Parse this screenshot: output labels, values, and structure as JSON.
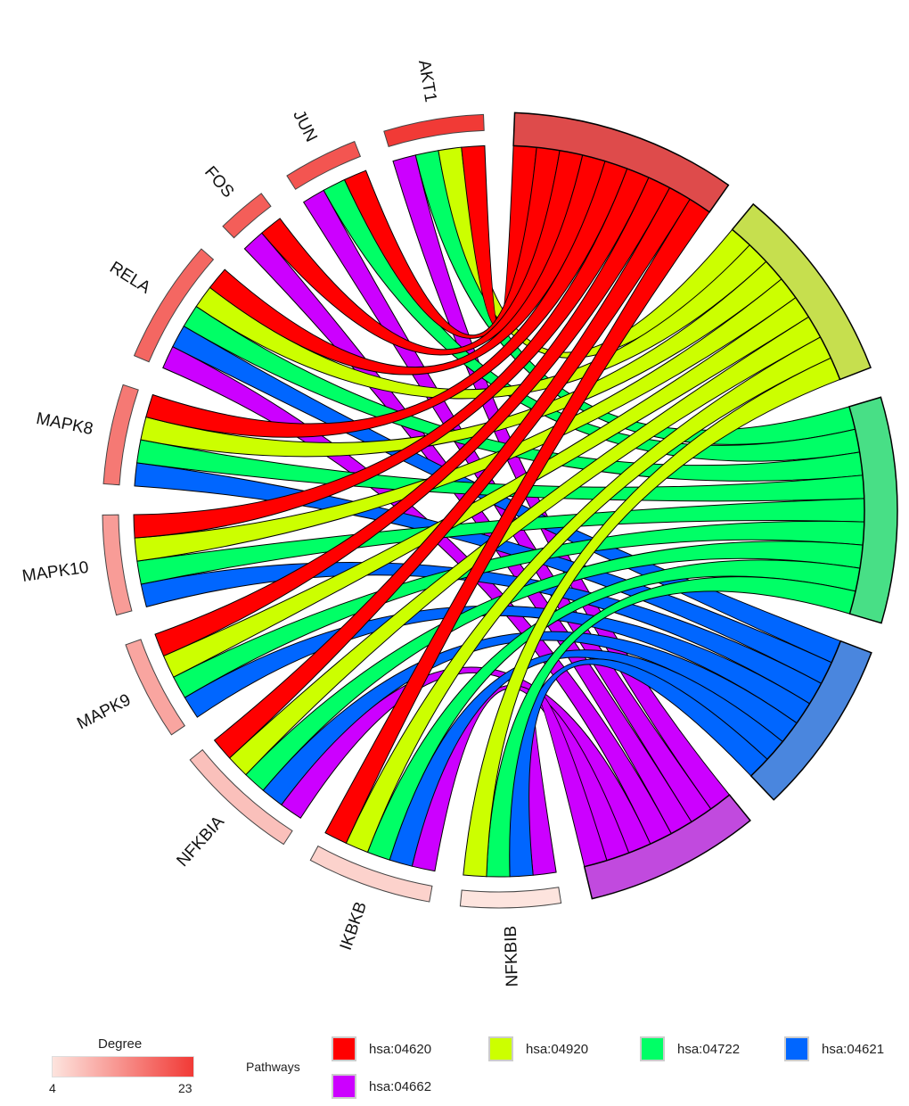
{
  "chart_data": {
    "type": "chord",
    "genes": [
      {
        "name": "AKT1",
        "degree": 23
      },
      {
        "name": "JUN",
        "degree": 20
      },
      {
        "name": "FOS",
        "degree": 19
      },
      {
        "name": "RELA",
        "degree": 18
      },
      {
        "name": "MAPK8",
        "degree": 16
      },
      {
        "name": "MAPK10",
        "degree": 12
      },
      {
        "name": "MAPK9",
        "degree": 11
      },
      {
        "name": "NFKBIA",
        "degree": 8
      },
      {
        "name": "IKBKB",
        "degree": 6
      },
      {
        "name": "NFKBIB",
        "degree": 4
      }
    ],
    "pathways": [
      {
        "name": "hsa:04620",
        "color": "#ff0000",
        "arc_color": "#de4b4b"
      },
      {
        "name": "hsa:04920",
        "color": "#ccff00",
        "arc_color": "#c6df4e"
      },
      {
        "name": "hsa:04722",
        "color": "#00ff66",
        "arc_color": "#48df86"
      },
      {
        "name": "hsa:04621",
        "color": "#0066ff",
        "arc_color": "#4a86de"
      },
      {
        "name": "hsa:04662",
        "color": "#cc00ff",
        "arc_color": "#c14ade"
      }
    ],
    "links": [
      [
        "AKT1",
        "hsa:04620"
      ],
      [
        "AKT1",
        "hsa:04920"
      ],
      [
        "AKT1",
        "hsa:04722"
      ],
      [
        "AKT1",
        "hsa:04662"
      ],
      [
        "JUN",
        "hsa:04620"
      ],
      [
        "JUN",
        "hsa:04722"
      ],
      [
        "JUN",
        "hsa:04662"
      ],
      [
        "FOS",
        "hsa:04620"
      ],
      [
        "FOS",
        "hsa:04662"
      ],
      [
        "RELA",
        "hsa:04620"
      ],
      [
        "RELA",
        "hsa:04920"
      ],
      [
        "RELA",
        "hsa:04722"
      ],
      [
        "RELA",
        "hsa:04621"
      ],
      [
        "RELA",
        "hsa:04662"
      ],
      [
        "MAPK8",
        "hsa:04620"
      ],
      [
        "MAPK8",
        "hsa:04920"
      ],
      [
        "MAPK8",
        "hsa:04722"
      ],
      [
        "MAPK8",
        "hsa:04621"
      ],
      [
        "MAPK10",
        "hsa:04620"
      ],
      [
        "MAPK10",
        "hsa:04920"
      ],
      [
        "MAPK10",
        "hsa:04722"
      ],
      [
        "MAPK10",
        "hsa:04621"
      ],
      [
        "MAPK9",
        "hsa:04620"
      ],
      [
        "MAPK9",
        "hsa:04920"
      ],
      [
        "MAPK9",
        "hsa:04722"
      ],
      [
        "MAPK9",
        "hsa:04621"
      ],
      [
        "NFKBIA",
        "hsa:04620"
      ],
      [
        "NFKBIA",
        "hsa:04920"
      ],
      [
        "NFKBIA",
        "hsa:04722"
      ],
      [
        "NFKBIA",
        "hsa:04621"
      ],
      [
        "NFKBIA",
        "hsa:04662"
      ],
      [
        "IKBKB",
        "hsa:04620"
      ],
      [
        "IKBKB",
        "hsa:04920"
      ],
      [
        "IKBKB",
        "hsa:04722"
      ],
      [
        "IKBKB",
        "hsa:04621"
      ],
      [
        "IKBKB",
        "hsa:04662"
      ],
      [
        "NFKBIB",
        "hsa:04920"
      ],
      [
        "NFKBIB",
        "hsa:04722"
      ],
      [
        "NFKBIB",
        "hsa:04621"
      ],
      [
        "NFKBIB",
        "hsa:04662"
      ]
    ],
    "legend": {
      "degree_title": "Degree",
      "degree_min": "4",
      "degree_max": "23",
      "pathways_title": "Pathways"
    }
  }
}
